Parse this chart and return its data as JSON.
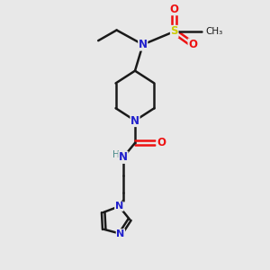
{
  "bg_color": "#e8e8e8",
  "bond_color": "#1a1a1a",
  "N_color": "#2020cc",
  "O_color": "#ee1111",
  "S_color": "#cccc00",
  "H_color": "#4a8a8a",
  "line_width": 1.8,
  "font_size": 8.5,
  "xlim": [
    0,
    10
  ],
  "ylim": [
    0,
    10
  ]
}
